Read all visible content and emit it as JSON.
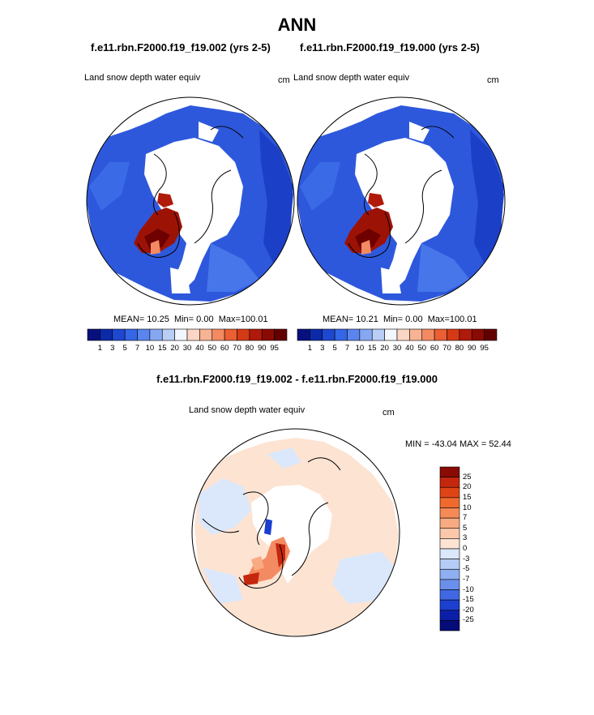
{
  "title": "ANN",
  "panels": [
    {
      "case_title": "f.e11.rbn.F2000.f19_f19.002 (yrs 2-5)",
      "variable": "Land snow depth water equiv",
      "units": "cm",
      "stats": {
        "mean_label": "MEAN=",
        "mean": "10.25",
        "min_label": "Min=",
        "min": "0.00",
        "max_label": "Max=",
        "max": "100.01"
      }
    },
    {
      "case_title": "f.e11.rbn.F2000.f19_f19.000 (yrs 2-5)",
      "variable": "Land snow depth water equiv",
      "units": "cm",
      "stats": {
        "mean_label": "MEAN=",
        "mean": "10.21",
        "min_label": "Min=",
        "min": "0.00",
        "max_label": "Max=",
        "max": "100.01"
      }
    }
  ],
  "colorbar_abs": {
    "labels": [
      "1",
      "3",
      "5",
      "7",
      "10",
      "15",
      "20",
      "30",
      "40",
      "50",
      "60",
      "70",
      "80",
      "90",
      "95"
    ],
    "colors": [
      "#08107f",
      "#0c2aa8",
      "#1f48d0",
      "#3466e8",
      "#5a85ee",
      "#86a7f2",
      "#b9cdf6",
      "#f2f6fd",
      "#fbd6c4",
      "#f8b394",
      "#f48a62",
      "#ea5f34",
      "#d53a16",
      "#b01a0a",
      "#8a0a04",
      "#620000"
    ]
  },
  "diff": {
    "title": "f.e11.rbn.F2000.f19_f19.002 - f.e11.rbn.F2000.f19_f19.000",
    "variable": "Land snow depth water equiv",
    "units": "cm",
    "minmax": "MIN = -43.04 MAX = 52.44",
    "colorbar": {
      "labels": [
        "25",
        "20",
        "15",
        "10",
        "7",
        "5",
        "3",
        "0",
        "-3",
        "-5",
        "-7",
        "-10",
        "-15",
        "-20",
        "-25"
      ],
      "colors": [
        "#8a0a04",
        "#c4260e",
        "#e04415",
        "#f06a2e",
        "#f58a56",
        "#f8ab82",
        "#fbc9aa",
        "#fde3d2",
        "#dbe8fb",
        "#b5cdf6",
        "#8eaff1",
        "#6b90ec",
        "#3f68e2",
        "#1c3fcf",
        "#0b1fa6",
        "#050c78"
      ]
    }
  },
  "colors": {
    "land": "#2e58dc",
    "snow": "#ffffff",
    "diff_bg": "#fde3d2",
    "diff_neg": "#dbe8fb"
  }
}
